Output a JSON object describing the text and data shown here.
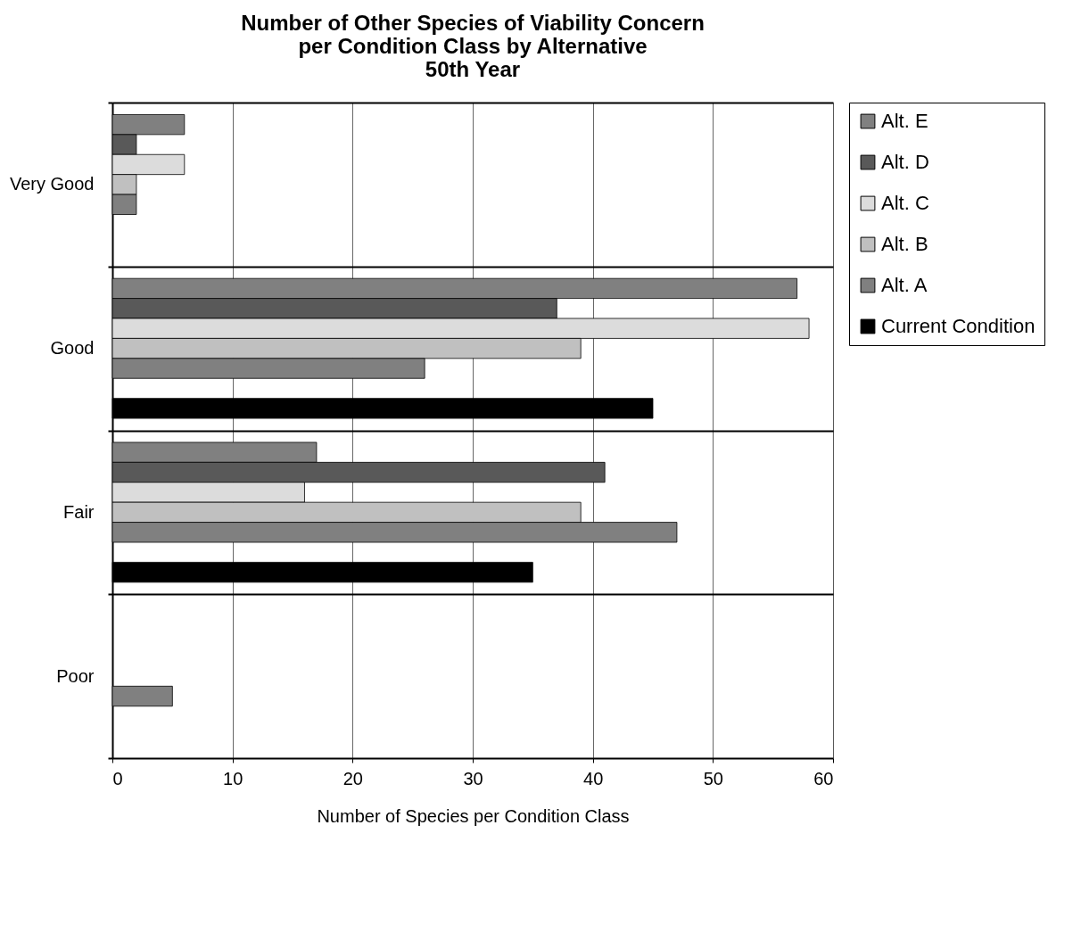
{
  "chart_data": {
    "type": "bar",
    "orientation": "horizontal",
    "title": [
      "Number of Other Species of Viability Concern",
      "per Condition Class by Alternative",
      "50th Year"
    ],
    "xlabel": "Number of Species per Condition Class",
    "categories": [
      "Very Good",
      "Good",
      "Fair",
      "Poor"
    ],
    "series": [
      {
        "name": "Alt. E",
        "color": "#808080",
        "values": [
          6,
          57,
          17,
          null
        ]
      },
      {
        "name": "Alt. D",
        "color": "#595959",
        "values": [
          2,
          37,
          41,
          null
        ]
      },
      {
        "name": "Alt. C",
        "color": "#dcdcdc",
        "values": [
          6,
          58,
          16,
          null
        ]
      },
      {
        "name": "Alt. B",
        "color": "#c0c0c0",
        "values": [
          2,
          39,
          39,
          null
        ]
      },
      {
        "name": "Alt. A",
        "color": "#808080",
        "values": [
          2,
          26,
          47,
          5
        ]
      },
      {
        "name": "Current Condition",
        "color": "#000000",
        "values": [
          null,
          45,
          35,
          null
        ]
      }
    ],
    "xlim": [
      0,
      60
    ],
    "xticks": [
      0,
      10,
      20,
      30,
      40,
      50,
      60
    ],
    "grid": true,
    "legend": "right"
  }
}
